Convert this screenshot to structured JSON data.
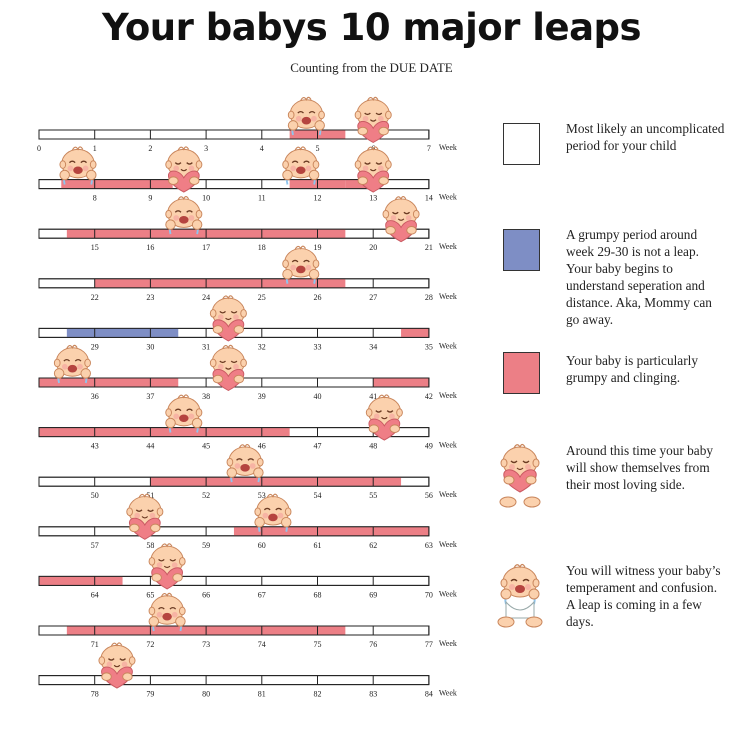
{
  "title": "Your babys 10 major leaps",
  "subtitle": "Counting from the DUE DATE",
  "colors": {
    "grumpy": "#ec7f86",
    "blue": "#7e8ec5",
    "calm": "#ffffff",
    "baby_skin": "#fbd1ad",
    "heart": "#ef7e86"
  },
  "legend": [
    {
      "swatch": "white",
      "text": "Most likely an uncomplicated period for your child"
    },
    {
      "swatch": "blue",
      "text": "A grumpy period around week 29-30 is not a leap. Your baby begins to understand seperation and distance. Aka, Mommy can go away."
    },
    {
      "swatch": "red",
      "text": "Your baby is particularly grumpy and clinging."
    },
    {
      "icon": "baby-heart-icon",
      "text": "Around this time your baby will show themselves from their most loving side."
    },
    {
      "icon": "baby-crying-icon",
      "text": "You will witness your baby’s temperament and confusion. A leap is coming in a few days."
    }
  ],
  "chart_data": {
    "type": "timeline",
    "unit_label": "Week",
    "row_start_weeks": [
      0,
      7,
      14,
      21,
      28,
      35,
      42,
      49,
      56,
      63,
      70,
      77
    ],
    "tick_labels": [
      [
        "0",
        "1",
        "2",
        "3",
        "4",
        "5",
        "6",
        "7"
      ],
      [
        "",
        "8",
        "9",
        "10",
        "11",
        "12",
        "13",
        "14"
      ],
      [
        "",
        "15",
        "16",
        "17",
        "18",
        "19",
        "20",
        "21"
      ],
      [
        "",
        "22",
        "23",
        "24",
        "25",
        "26",
        "27",
        "28"
      ],
      [
        "",
        "29",
        "30",
        "31",
        "32",
        "33",
        "34",
        "35"
      ],
      [
        "",
        "36",
        "37",
        "38",
        "39",
        "40",
        "41",
        "42"
      ],
      [
        "",
        "43",
        "44",
        "45",
        "46",
        "47",
        "48",
        "49"
      ],
      [
        "",
        "50",
        "51",
        "52",
        "53",
        "54",
        "55",
        "56"
      ],
      [
        "",
        "57",
        "58",
        "59",
        "60",
        "61",
        "62",
        "63"
      ],
      [
        "",
        "64",
        "65",
        "66",
        "67",
        "68",
        "69",
        "70"
      ],
      [
        "",
        "71",
        "72",
        "73",
        "74",
        "75",
        "76",
        "77"
      ],
      [
        "",
        "78",
        "79",
        "80",
        "81",
        "82",
        "83",
        "84"
      ]
    ],
    "grumpy_periods": [
      [
        4.5,
        5.5
      ],
      [
        7.4,
        9.4
      ],
      [
        11.5,
        12.5
      ],
      [
        12.5,
        13.1
      ],
      [
        14.5,
        19.5
      ],
      [
        22,
        26.5
      ],
      [
        34.5,
        35
      ],
      [
        35,
        37.5
      ],
      [
        41,
        42
      ],
      [
        42,
        46.5
      ],
      [
        51,
        55.5
      ],
      [
        59.5,
        63
      ],
      [
        63,
        64.5
      ],
      [
        70.5,
        75.5
      ]
    ],
    "blue_periods": [
      [
        28.5,
        30.5
      ]
    ],
    "events": [
      {
        "week": 4.8,
        "kind": "crying"
      },
      {
        "week": 6.0,
        "kind": "heart"
      },
      {
        "week": 7.7,
        "kind": "crying"
      },
      {
        "week": 9.6,
        "kind": "heart"
      },
      {
        "week": 11.7,
        "kind": "crying"
      },
      {
        "week": 13.0,
        "kind": "heart"
      },
      {
        "week": 16.6,
        "kind": "crying"
      },
      {
        "week": 20.5,
        "kind": "heart"
      },
      {
        "week": 25.7,
        "kind": "crying"
      },
      {
        "week": 31.4,
        "kind": "heart"
      },
      {
        "week": 35.6,
        "kind": "crying"
      },
      {
        "week": 38.4,
        "kind": "heart"
      },
      {
        "week": 44.6,
        "kind": "crying"
      },
      {
        "week": 48.2,
        "kind": "heart"
      },
      {
        "week": 52.7,
        "kind": "crying"
      },
      {
        "week": 60.2,
        "kind": "crying"
      },
      {
        "week": 57.9,
        "kind": "heart"
      },
      {
        "week": 65.3,
        "kind": "heart"
      },
      {
        "week": 72.3,
        "kind": "crying"
      },
      {
        "week": 78.4,
        "kind": "heart"
      }
    ]
  }
}
